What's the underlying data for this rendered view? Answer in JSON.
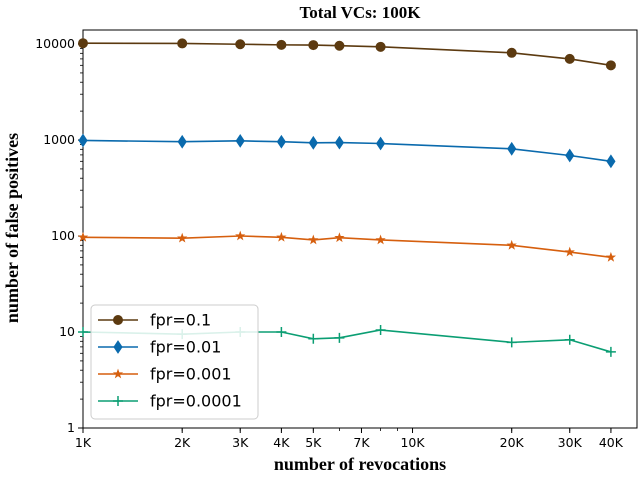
{
  "chart_data": {
    "type": "line",
    "title": "Total VCs: 100K",
    "xlabel": "number of revocations",
    "ylabel": "number of false positives",
    "xscale": "log",
    "yscale": "log",
    "xlim": [
      1000,
      48000
    ],
    "ylim": [
      1,
      14000
    ],
    "x": [
      1000,
      2000,
      3000,
      4000,
      5000,
      6000,
      8000,
      20000,
      30000,
      40000
    ],
    "x_ticks": [
      {
        "value": 1000,
        "label": "1K"
      },
      {
        "value": 2000,
        "label": "2K"
      },
      {
        "value": 3000,
        "label": "3K"
      },
      {
        "value": 4000,
        "label": "4K"
      },
      {
        "value": 5000,
        "label": "5K"
      },
      {
        "value": 7000,
        "label": "7K"
      },
      {
        "value": 10000,
        "label": "10K"
      },
      {
        "value": 20000,
        "label": "20K"
      },
      {
        "value": 30000,
        "label": "30K"
      },
      {
        "value": 40000,
        "label": "40K"
      }
    ],
    "y_ticks": [
      {
        "value": 1,
        "label": "1"
      },
      {
        "value": 10,
        "label": "10"
      },
      {
        "value": 100,
        "label": "100"
      },
      {
        "value": 1000,
        "label": "1000"
      },
      {
        "value": 10000,
        "label": "10000"
      }
    ],
    "grid": false,
    "legend_position": "lower-left",
    "series": [
      {
        "name": "fpr=0.1",
        "color": "#5c3a10",
        "marker": "circle",
        "values": [
          10200,
          10150,
          9950,
          9800,
          9750,
          9600,
          9350,
          8100,
          7000,
          6000
        ]
      },
      {
        "name": "fpr=0.01",
        "color": "#0a6aad",
        "marker": "diamond",
        "values": [
          990,
          960,
          980,
          960,
          935,
          940,
          920,
          810,
          690,
          600
        ]
      },
      {
        "name": "fpr=0.001",
        "color": "#d65f0e",
        "marker": "star",
        "values": [
          97,
          95,
          100,
          97,
          91,
          96,
          91,
          80,
          68,
          60
        ]
      },
      {
        "name": "fpr=0.0001",
        "color": "#0b9e73",
        "marker": "plus",
        "values": [
          10,
          9.5,
          10,
          10,
          8.5,
          8.7,
          10.5,
          7.8,
          8.3,
          6.2
        ]
      }
    ]
  }
}
